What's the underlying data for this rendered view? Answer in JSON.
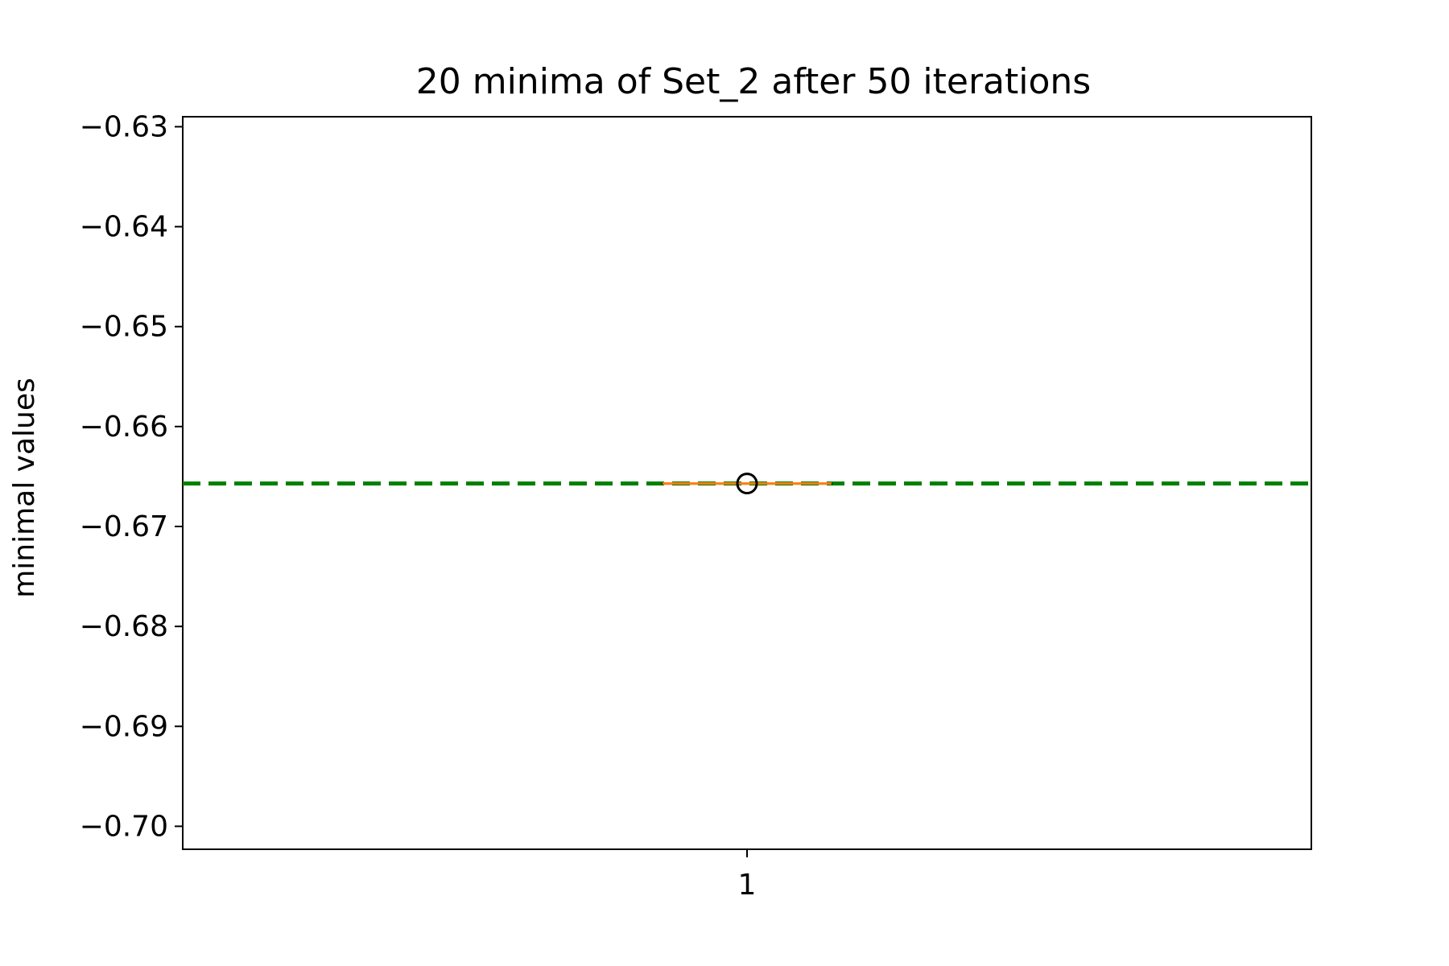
{
  "chart_data": {
    "type": "box",
    "title": "20 minima of Set_2 after 50 iterations",
    "xlabel": "",
    "ylabel": "minimal values",
    "ylim": [
      -0.7023,
      -0.629
    ],
    "xlim": [
      0.5,
      1.5
    ],
    "x_tick_labels": [
      {
        "value": 1,
        "label": "1"
      }
    ],
    "y_tick_labels": [
      {
        "value": -0.63,
        "label": "−0.63"
      },
      {
        "value": -0.64,
        "label": "−0.64"
      },
      {
        "value": -0.65,
        "label": "−0.65"
      },
      {
        "value": -0.66,
        "label": "−0.66"
      },
      {
        "value": -0.67,
        "label": "−0.67"
      },
      {
        "value": -0.68,
        "label": "−0.68"
      },
      {
        "value": -0.69,
        "label": "−0.69"
      },
      {
        "value": -0.7,
        "label": "−0.70"
      }
    ],
    "boxes": [
      {
        "position": 1,
        "median": -0.6657,
        "q1": -0.6657,
        "q3": -0.6657,
        "whisker_low": -0.6657,
        "whisker_high": -0.6657,
        "fliers": [
          -0.6657
        ]
      }
    ],
    "reference_line": {
      "y": -0.6657,
      "style": "dashed"
    },
    "grid": false,
    "colors": {
      "median": "#ff7f0e",
      "reference": "#008000",
      "box": "#000000"
    }
  }
}
